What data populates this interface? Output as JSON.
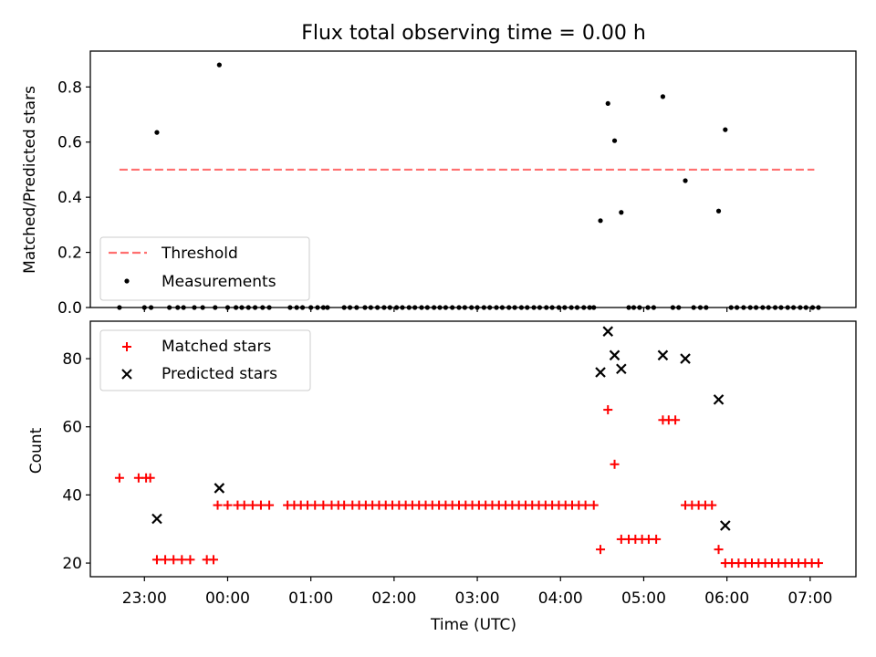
{
  "chart_data": [
    {
      "type": "scatter",
      "title": "Flux total observing time = 0.00 h",
      "xlabel": "",
      "ylabel": "Matched/Predicted stars",
      "xlim": [
        22.35,
        31.55
      ],
      "ylim": [
        0,
        0.93
      ],
      "yticks": [
        0.0,
        0.2,
        0.4,
        0.6,
        0.8
      ],
      "ytick_labels": [
        "0.0",
        "0.2",
        "0.4",
        "0.6",
        "0.8"
      ],
      "xticks": [
        23,
        24,
        25,
        26,
        27,
        28,
        29,
        30,
        31
      ],
      "legend_position": "lower-left",
      "threshold": {
        "name": "Threshold",
        "color": "#ff7070",
        "style": "dashed",
        "y": 0.5,
        "x_range": [
          22.7,
          31.05
        ]
      },
      "series": [
        {
          "name": "Measurements",
          "color": "#000000",
          "marker": "dot",
          "points": [
            [
              22.7,
              0
            ],
            [
              23.0,
              0
            ],
            [
              23.08,
              0
            ],
            [
              23.15,
              0.635
            ],
            [
              23.3,
              0
            ],
            [
              23.4,
              0
            ],
            [
              23.47,
              0
            ],
            [
              23.6,
              0
            ],
            [
              23.7,
              0
            ],
            [
              23.85,
              0
            ],
            [
              23.9,
              0.88
            ],
            [
              24.0,
              0
            ],
            [
              24.1,
              0
            ],
            [
              24.17,
              0
            ],
            [
              24.25,
              0
            ],
            [
              24.33,
              0
            ],
            [
              24.42,
              0
            ],
            [
              24.5,
              0
            ],
            [
              24.75,
              0
            ],
            [
              24.83,
              0
            ],
            [
              24.9,
              0
            ],
            [
              25.0,
              0
            ],
            [
              25.08,
              0
            ],
            [
              25.15,
              0
            ],
            [
              25.2,
              0
            ],
            [
              25.4,
              0
            ],
            [
              25.47,
              0
            ],
            [
              25.55,
              0
            ],
            [
              25.65,
              0
            ],
            [
              25.72,
              0
            ],
            [
              25.8,
              0
            ],
            [
              25.88,
              0
            ],
            [
              25.95,
              0
            ],
            [
              26.03,
              0
            ],
            [
              26.1,
              0
            ],
            [
              26.18,
              0
            ],
            [
              26.25,
              0
            ],
            [
              26.33,
              0
            ],
            [
              26.4,
              0
            ],
            [
              26.48,
              0
            ],
            [
              26.55,
              0
            ],
            [
              26.62,
              0
            ],
            [
              26.7,
              0
            ],
            [
              26.78,
              0
            ],
            [
              26.85,
              0
            ],
            [
              26.93,
              0
            ],
            [
              27.0,
              0
            ],
            [
              27.08,
              0
            ],
            [
              27.15,
              0
            ],
            [
              27.23,
              0
            ],
            [
              27.3,
              0
            ],
            [
              27.38,
              0
            ],
            [
              27.45,
              0
            ],
            [
              27.53,
              0
            ],
            [
              27.6,
              0
            ],
            [
              27.68,
              0
            ],
            [
              27.75,
              0
            ],
            [
              27.83,
              0
            ],
            [
              27.9,
              0
            ],
            [
              27.98,
              0
            ],
            [
              28.05,
              0
            ],
            [
              28.13,
              0
            ],
            [
              28.2,
              0
            ],
            [
              28.28,
              0
            ],
            [
              28.35,
              0
            ],
            [
              28.4,
              0
            ],
            [
              28.48,
              0.315
            ],
            [
              28.57,
              0.74
            ],
            [
              28.65,
              0.605
            ],
            [
              28.73,
              0.345
            ],
            [
              28.82,
              0
            ],
            [
              28.88,
              0
            ],
            [
              28.95,
              0
            ],
            [
              29.05,
              0
            ],
            [
              29.12,
              0
            ],
            [
              29.23,
              0.765
            ],
            [
              29.35,
              0
            ],
            [
              29.42,
              0
            ],
            [
              29.5,
              0.46
            ],
            [
              29.6,
              0
            ],
            [
              29.68,
              0
            ],
            [
              29.75,
              0
            ],
            [
              29.9,
              0.35
            ],
            [
              29.98,
              0.645
            ],
            [
              30.05,
              0
            ],
            [
              30.12,
              0
            ],
            [
              30.2,
              0
            ],
            [
              30.28,
              0
            ],
            [
              30.35,
              0
            ],
            [
              30.43,
              0
            ],
            [
              30.5,
              0
            ],
            [
              30.58,
              0
            ],
            [
              30.65,
              0
            ],
            [
              30.73,
              0
            ],
            [
              30.8,
              0
            ],
            [
              30.88,
              0
            ],
            [
              30.95,
              0
            ],
            [
              31.03,
              0
            ],
            [
              31.1,
              0
            ]
          ]
        }
      ]
    },
    {
      "type": "scatter",
      "title": "",
      "xlabel": "Time (UTC)",
      "ylabel": "Count",
      "xlim": [
        22.35,
        31.55
      ],
      "ylim": [
        16,
        91
      ],
      "yticks": [
        20,
        40,
        60,
        80
      ],
      "ytick_labels": [
        "20",
        "40",
        "60",
        "80"
      ],
      "xticks": [
        23,
        24,
        25,
        26,
        27,
        28,
        29,
        30,
        31
      ],
      "xtick_labels": [
        "23:00",
        "00:00",
        "01:00",
        "02:00",
        "03:00",
        "04:00",
        "05:00",
        "06:00",
        "07:00"
      ],
      "legend_position": "top-left",
      "series": [
        {
          "name": "Matched stars",
          "color": "#ff0000",
          "marker": "plus",
          "points": [
            [
              22.7,
              45
            ],
            [
              22.93,
              45
            ],
            [
              23.02,
              45
            ],
            [
              23.07,
              45
            ],
            [
              23.15,
              21
            ],
            [
              23.25,
              21
            ],
            [
              23.35,
              21
            ],
            [
              23.45,
              21
            ],
            [
              23.55,
              21
            ],
            [
              23.75,
              21
            ],
            [
              23.83,
              21
            ],
            [
              23.88,
              37
            ],
            [
              24.0,
              37
            ],
            [
              24.12,
              37
            ],
            [
              24.2,
              37
            ],
            [
              24.3,
              37
            ],
            [
              24.4,
              37
            ],
            [
              24.5,
              37
            ],
            [
              24.72,
              37
            ],
            [
              24.8,
              37
            ],
            [
              24.88,
              37
            ],
            [
              24.96,
              37
            ],
            [
              25.05,
              37
            ],
            [
              25.15,
              37
            ],
            [
              25.25,
              37
            ],
            [
              25.33,
              37
            ],
            [
              25.4,
              37
            ],
            [
              25.5,
              37
            ],
            [
              25.58,
              37
            ],
            [
              25.66,
              37
            ],
            [
              25.74,
              37
            ],
            [
              25.82,
              37
            ],
            [
              25.9,
              37
            ],
            [
              25.98,
              37
            ],
            [
              26.06,
              37
            ],
            [
              26.14,
              37
            ],
            [
              26.22,
              37
            ],
            [
              26.3,
              37
            ],
            [
              26.38,
              37
            ],
            [
              26.46,
              37
            ],
            [
              26.54,
              37
            ],
            [
              26.62,
              37
            ],
            [
              26.7,
              37
            ],
            [
              26.78,
              37
            ],
            [
              26.86,
              37
            ],
            [
              26.94,
              37
            ],
            [
              27.02,
              37
            ],
            [
              27.1,
              37
            ],
            [
              27.18,
              37
            ],
            [
              27.26,
              37
            ],
            [
              27.34,
              37
            ],
            [
              27.42,
              37
            ],
            [
              27.5,
              37
            ],
            [
              27.58,
              37
            ],
            [
              27.66,
              37
            ],
            [
              27.74,
              37
            ],
            [
              27.82,
              37
            ],
            [
              27.9,
              37
            ],
            [
              27.98,
              37
            ],
            [
              28.06,
              37
            ],
            [
              28.14,
              37
            ],
            [
              28.22,
              37
            ],
            [
              28.3,
              37
            ],
            [
              28.4,
              37
            ],
            [
              28.48,
              24
            ],
            [
              28.57,
              65
            ],
            [
              28.65,
              49
            ],
            [
              28.73,
              27
            ],
            [
              28.82,
              27
            ],
            [
              28.9,
              27
            ],
            [
              28.98,
              27
            ],
            [
              29.06,
              27
            ],
            [
              29.15,
              27
            ],
            [
              29.23,
              62
            ],
            [
              29.3,
              62
            ],
            [
              29.38,
              62
            ],
            [
              29.5,
              37
            ],
            [
              29.58,
              37
            ],
            [
              29.66,
              37
            ],
            [
              29.74,
              37
            ],
            [
              29.82,
              37
            ],
            [
              29.9,
              24
            ],
            [
              29.98,
              20
            ],
            [
              30.06,
              20
            ],
            [
              30.14,
              20
            ],
            [
              30.22,
              20
            ],
            [
              30.3,
              20
            ],
            [
              30.38,
              20
            ],
            [
              30.46,
              20
            ],
            [
              30.54,
              20
            ],
            [
              30.62,
              20
            ],
            [
              30.7,
              20
            ],
            [
              30.78,
              20
            ],
            [
              30.86,
              20
            ],
            [
              30.94,
              20
            ],
            [
              31.02,
              20
            ],
            [
              31.1,
              20
            ]
          ]
        },
        {
          "name": "Predicted stars",
          "color": "#000000",
          "marker": "x",
          "points": [
            [
              23.15,
              33
            ],
            [
              23.9,
              42
            ],
            [
              28.48,
              76
            ],
            [
              28.57,
              88
            ],
            [
              28.65,
              81
            ],
            [
              28.73,
              77
            ],
            [
              29.23,
              81
            ],
            [
              29.5,
              80
            ],
            [
              29.9,
              68
            ],
            [
              29.98,
              31
            ]
          ]
        }
      ]
    }
  ]
}
